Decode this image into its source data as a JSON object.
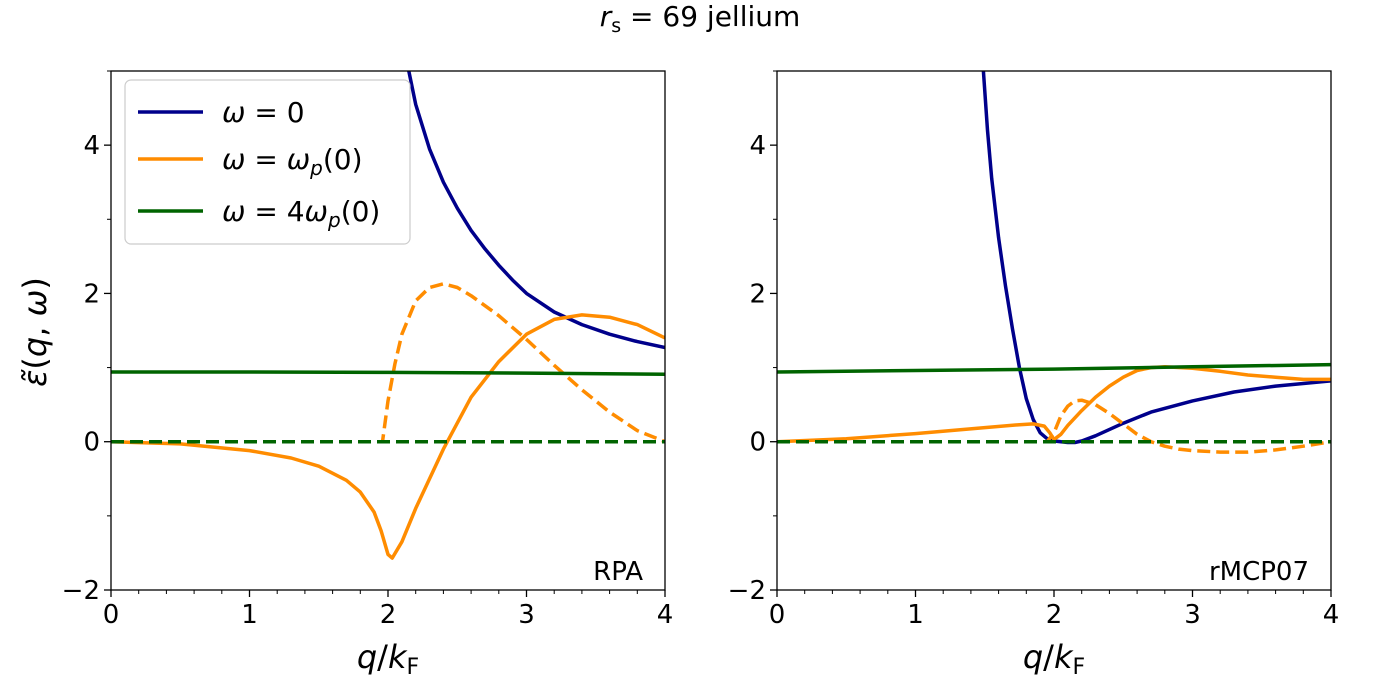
{
  "figure": {
    "title": "r_s = 69 jellium",
    "ylabel": "ε̃(q, ω)",
    "xlabel": "q/k_F"
  },
  "legend": {
    "placement": "upper-left of left panel",
    "entries": [
      {
        "label": "ω = 0",
        "color": "#00008b"
      },
      {
        "label": "ω = ω_p(0)",
        "color": "#ff8c00"
      },
      {
        "label": "ω = 4ω_p(0)",
        "color": "#006400"
      }
    ]
  },
  "chart_data": [
    {
      "type": "line",
      "panel_label": "RPA",
      "xlim": [
        0,
        4
      ],
      "ylim": [
        -2,
        5
      ],
      "xticks": [
        0,
        1,
        2,
        3,
        4
      ],
      "yticks": [
        -2,
        0,
        2,
        4
      ],
      "series": [
        {
          "name": "ω = 0",
          "part": "real",
          "color": "#00008b",
          "dash": false,
          "x": [
            2.15,
            2.2,
            2.3,
            2.4,
            2.5,
            2.6,
            2.7,
            2.8,
            2.9,
            3.0,
            3.2,
            3.4,
            3.6,
            3.8,
            4.0
          ],
          "y": [
            5.0,
            4.55,
            3.95,
            3.5,
            3.15,
            2.85,
            2.6,
            2.38,
            2.18,
            2.0,
            1.75,
            1.58,
            1.45,
            1.35,
            1.27
          ]
        },
        {
          "name": "ω = ω_p(0)",
          "part": "real",
          "color": "#ff8c00",
          "dash": false,
          "x": [
            0,
            0.5,
            1.0,
            1.3,
            1.5,
            1.7,
            1.8,
            1.9,
            1.95,
            2.0,
            2.03,
            2.1,
            2.2,
            2.4,
            2.6,
            2.8,
            3.0,
            3.2,
            3.4,
            3.6,
            3.8,
            4.0
          ],
          "y": [
            0,
            -0.03,
            -0.12,
            -0.22,
            -0.33,
            -0.52,
            -0.68,
            -0.95,
            -1.2,
            -1.52,
            -1.57,
            -1.35,
            -0.9,
            -0.1,
            0.6,
            1.08,
            1.45,
            1.65,
            1.71,
            1.68,
            1.58,
            1.4
          ]
        },
        {
          "name": "ω = ω_p(0)",
          "part": "imaginary",
          "color": "#ff8c00",
          "dash": true,
          "x": [
            0,
            1.0,
            1.96,
            2.0,
            2.05,
            2.1,
            2.2,
            2.3,
            2.4,
            2.5,
            2.6,
            2.8,
            3.0,
            3.2,
            3.4,
            3.6,
            3.8,
            4.0
          ],
          "y": [
            0,
            0,
            0,
            0.55,
            1.05,
            1.45,
            1.9,
            2.08,
            2.13,
            2.08,
            1.97,
            1.7,
            1.38,
            1.03,
            0.7,
            0.4,
            0.15,
            0.0
          ]
        },
        {
          "name": "ω = 4ω_p(0)",
          "part": "real",
          "color": "#006400",
          "dash": false,
          "x": [
            0,
            1,
            2,
            3,
            4
          ],
          "y": [
            0.94,
            0.94,
            0.935,
            0.925,
            0.91
          ]
        },
        {
          "name": "ω = 4ω_p(0)",
          "part": "imaginary",
          "color": "#006400",
          "dash": true,
          "x": [
            0,
            4
          ],
          "y": [
            0,
            0
          ]
        }
      ]
    },
    {
      "type": "line",
      "panel_label": "rMCP07",
      "xlim": [
        0,
        4
      ],
      "ylim": [
        -2,
        5
      ],
      "xticks": [
        0,
        1,
        2,
        3,
        4
      ],
      "yticks": [
        -2,
        0,
        2,
        4
      ],
      "series": [
        {
          "name": "ω = 0",
          "part": "real",
          "color": "#00008b",
          "dash": false,
          "x": [
            1.49,
            1.52,
            1.55,
            1.6,
            1.65,
            1.7,
            1.75,
            1.8,
            1.85,
            1.9,
            1.95,
            2.0,
            2.1,
            2.15,
            2.2,
            2.3,
            2.5,
            2.7,
            3.0,
            3.3,
            3.6,
            4.0
          ],
          "y": [
            5.0,
            4.2,
            3.55,
            2.75,
            2.1,
            1.52,
            1.0,
            0.58,
            0.3,
            0.12,
            0.04,
            0.01,
            -0.01,
            -0.01,
            0.01,
            0.08,
            0.25,
            0.4,
            0.55,
            0.67,
            0.75,
            0.82
          ]
        },
        {
          "name": "ω = ω_p(0)",
          "part": "real",
          "color": "#ff8c00",
          "dash": false,
          "x": [
            0,
            0.5,
            1.0,
            1.5,
            1.75,
            1.85,
            1.93,
            1.97,
            2.0,
            2.05,
            2.1,
            2.2,
            2.3,
            2.4,
            2.5,
            2.6,
            2.7,
            2.8,
            3.0,
            3.2,
            3.4,
            3.6,
            3.8,
            4.0
          ],
          "y": [
            0,
            0.04,
            0.11,
            0.19,
            0.23,
            0.24,
            0.21,
            0.12,
            0.03,
            0.1,
            0.22,
            0.42,
            0.6,
            0.75,
            0.87,
            0.96,
            1.0,
            1.01,
            0.99,
            0.95,
            0.9,
            0.87,
            0.84,
            0.84
          ]
        },
        {
          "name": "ω = ω_p(0)",
          "part": "imaginary",
          "color": "#ff8c00",
          "dash": true,
          "x": [
            0,
            1.0,
            1.95,
            2.0,
            2.05,
            2.1,
            2.15,
            2.2,
            2.3,
            2.4,
            2.5,
            2.6,
            2.7,
            2.8,
            2.9,
            3.0,
            3.2,
            3.4,
            3.6,
            3.8,
            4.0
          ],
          "y": [
            0,
            0,
            0.0,
            0.12,
            0.35,
            0.48,
            0.55,
            0.56,
            0.5,
            0.38,
            0.24,
            0.1,
            0.0,
            -0.06,
            -0.1,
            -0.12,
            -0.14,
            -0.14,
            -0.11,
            -0.06,
            0.0
          ]
        },
        {
          "name": "ω = 4ω_p(0)",
          "part": "real",
          "color": "#006400",
          "dash": false,
          "x": [
            0,
            1,
            2,
            3,
            4
          ],
          "y": [
            0.94,
            0.96,
            0.98,
            1.01,
            1.04
          ]
        },
        {
          "name": "ω = 4ω_p(0)",
          "part": "imaginary",
          "color": "#006400",
          "dash": true,
          "x": [
            0,
            4
          ],
          "y": [
            0,
            0
          ]
        }
      ]
    }
  ]
}
